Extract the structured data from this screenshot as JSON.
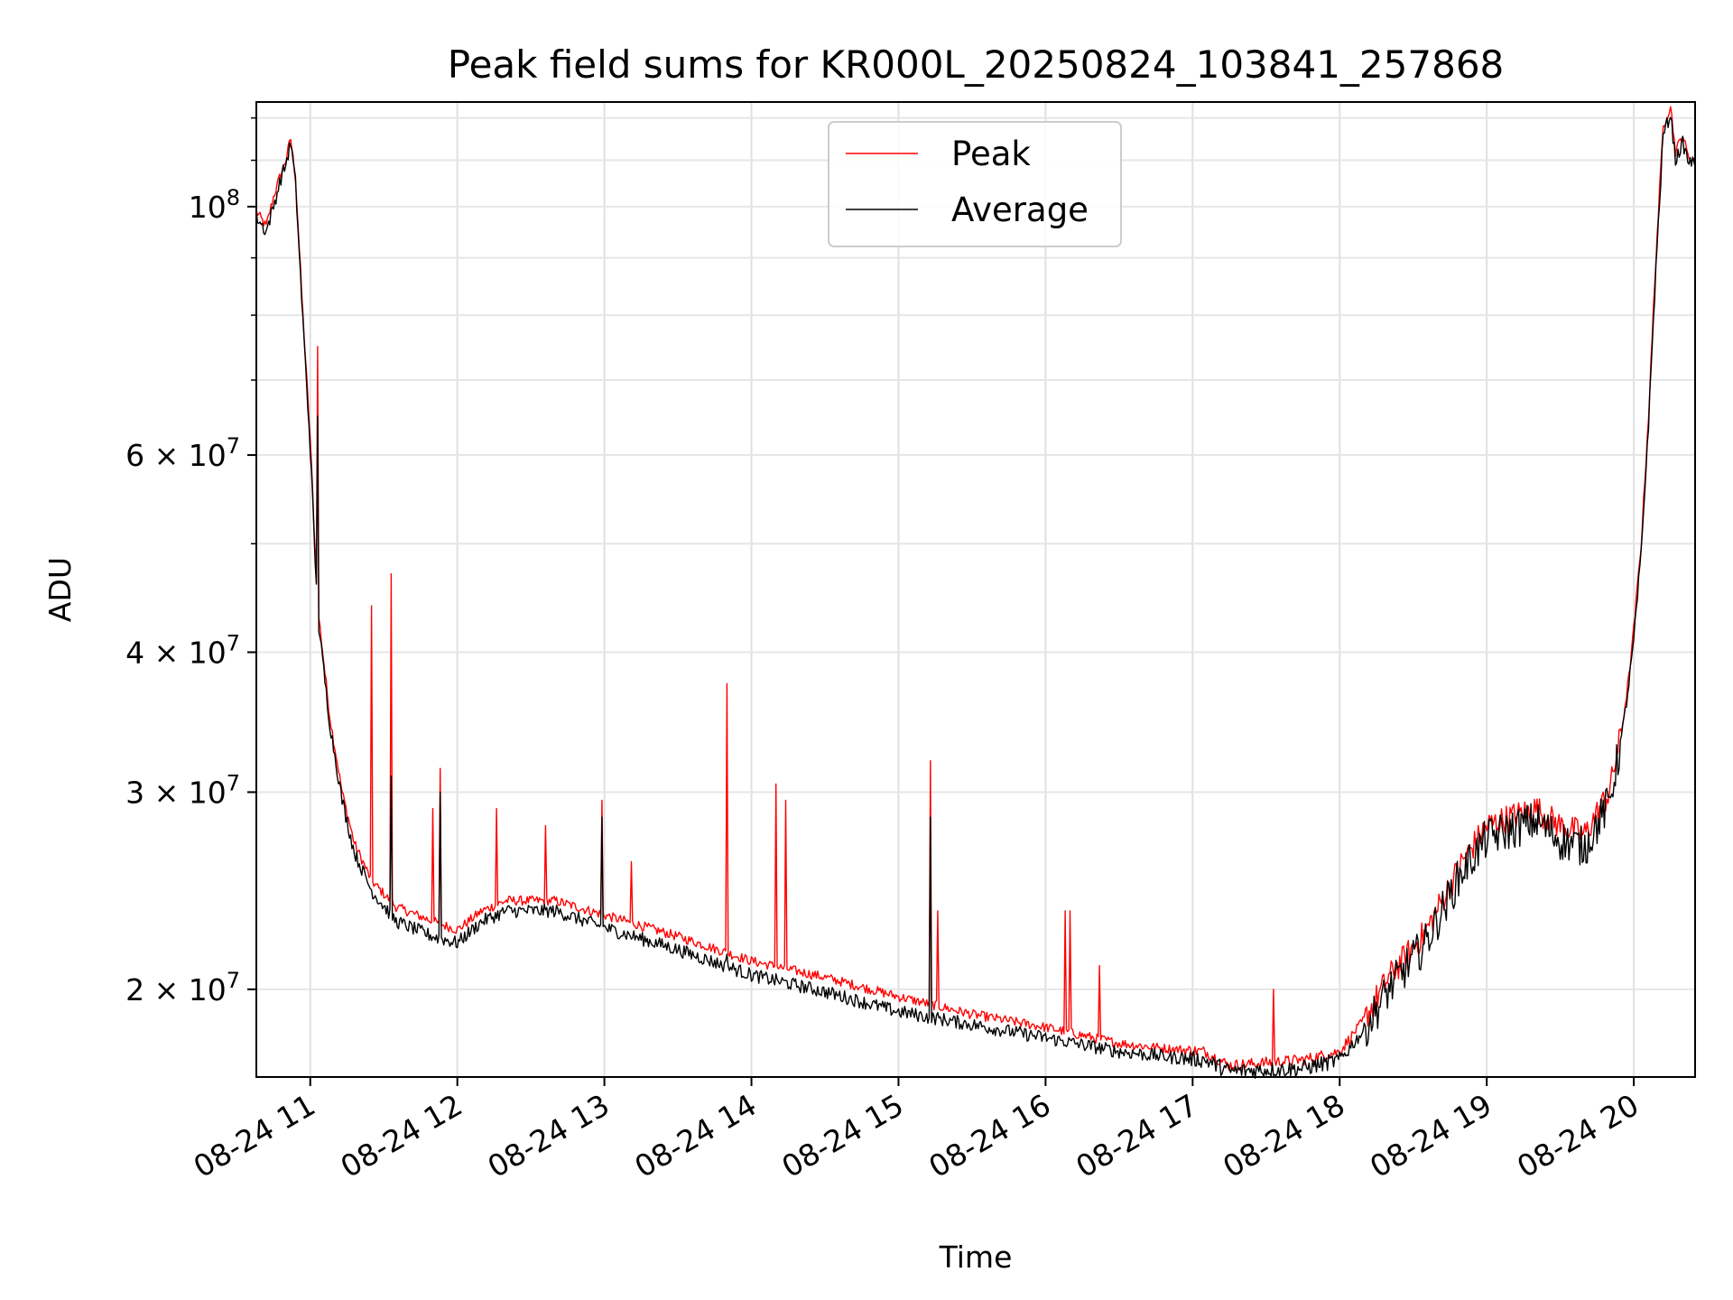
{
  "chart_data": {
    "type": "line",
    "title": "Peak field sums for KR000L_20250824_103841_257868",
    "xlabel": "Time",
    "ylabel": "ADU",
    "x_ticks": [
      "08-24 11",
      "08-24 12",
      "08-24 13",
      "08-24 14",
      "08-24 15",
      "08-24 16",
      "08-24 17",
      "08-24 18",
      "08-24 19",
      "08-24 20"
    ],
    "y_ticks": [
      {
        "value": 20000000,
        "mant": "2",
        "exp": "7"
      },
      {
        "value": 30000000,
        "mant": "3",
        "exp": "7"
      },
      {
        "value": 40000000,
        "mant": "4",
        "exp": "7"
      },
      {
        "value": 60000000,
        "mant": "6",
        "exp": "7"
      },
      {
        "value": 100000000,
        "mant": "10",
        "exp": "8"
      }
    ],
    "xlim": [
      "2025-08-24 10:38",
      "2025-08-24 20:25"
    ],
    "ylim": [
      16700000,
      124000000
    ],
    "yscale": "log",
    "grid": true,
    "legend_position": "upper center",
    "series": [
      {
        "name": "Peak",
        "color": "#ff0000",
        "points": [
          [
            "2025-08-24 10:38",
            99000000
          ],
          [
            "2025-08-24 10:42",
            96000000
          ],
          [
            "2025-08-24 10:45",
            102000000
          ],
          [
            "2025-08-24 10:48",
            107000000
          ],
          [
            "2025-08-24 10:50",
            110000000
          ],
          [
            "2025-08-24 10:52",
            115000000
          ],
          [
            "2025-08-24 10:54",
            106000000
          ],
          [
            "2025-08-24 10:57",
            80000000
          ],
          [
            "2025-08-24 11:00",
            62000000
          ],
          [
            "2025-08-24 11:03",
            44000000
          ],
          [
            "2025-08-24 11:08",
            35000000
          ],
          [
            "2025-08-24 11:13",
            30000000
          ],
          [
            "2025-08-24 11:18",
            27000000
          ],
          [
            "2025-08-24 11:25",
            25000000
          ],
          [
            "2025-08-24 11:35",
            23700000
          ],
          [
            "2025-08-24 11:50",
            23000000
          ],
          [
            "2025-08-24 12:00",
            22600000
          ],
          [
            "2025-08-24 12:10",
            23500000
          ],
          [
            "2025-08-24 12:20",
            24000000
          ],
          [
            "2025-08-24 12:40",
            24000000
          ],
          [
            "2025-08-24 13:00",
            23300000
          ],
          [
            "2025-08-24 13:30",
            22300000
          ],
          [
            "2025-08-24 14:00",
            21200000
          ],
          [
            "2025-08-24 14:30",
            20500000
          ],
          [
            "2025-08-24 15:00",
            19700000
          ],
          [
            "2025-08-24 15:30",
            19000000
          ],
          [
            "2025-08-24 16:00",
            18500000
          ],
          [
            "2025-08-24 16:30",
            17900000
          ],
          [
            "2025-08-24 16:50",
            17700000
          ],
          [
            "2025-08-24 17:05",
            17600000
          ],
          [
            "2025-08-24 17:15",
            17100000
          ],
          [
            "2025-08-24 17:30",
            17200000
          ],
          [
            "2025-08-24 17:45",
            17300000
          ],
          [
            "2025-08-24 18:00",
            17600000
          ],
          [
            "2025-08-24 18:10",
            18800000
          ],
          [
            "2025-08-24 18:20",
            20500000
          ],
          [
            "2025-08-24 18:35",
            22500000
          ],
          [
            "2025-08-24 18:50",
            26000000
          ],
          [
            "2025-08-24 19:00",
            28000000
          ],
          [
            "2025-08-24 19:10",
            28500000
          ],
          [
            "2025-08-24 19:20",
            29000000
          ],
          [
            "2025-08-24 19:30",
            28000000
          ],
          [
            "2025-08-24 19:40",
            27500000
          ],
          [
            "2025-08-24 19:50",
            30000000
          ],
          [
            "2025-08-24 19:55",
            34000000
          ],
          [
            "2025-08-24 19:58",
            38000000
          ],
          [
            "2025-08-24 20:00",
            42000000
          ],
          [
            "2025-08-24 20:03",
            50000000
          ],
          [
            "2025-08-24 20:06",
            65000000
          ],
          [
            "2025-08-24 20:09",
            90000000
          ],
          [
            "2025-08-24 20:12",
            118000000
          ],
          [
            "2025-08-24 20:15",
            123000000
          ],
          [
            "2025-08-24 20:17",
            112000000
          ],
          [
            "2025-08-24 20:20",
            116000000
          ],
          [
            "2025-08-24 20:22",
            111000000
          ],
          [
            "2025-08-24 20:25",
            110000000
          ]
        ],
        "spikes": [
          [
            "2025-08-24 11:03",
            75000000
          ],
          [
            "2025-08-24 11:25",
            44000000
          ],
          [
            "2025-08-24 11:33",
            47000000
          ],
          [
            "2025-08-24 11:50",
            29000000
          ],
          [
            "2025-08-24 11:53",
            31500000
          ],
          [
            "2025-08-24 12:16",
            29000000
          ],
          [
            "2025-08-24 12:36",
            28000000
          ],
          [
            "2025-08-24 12:59",
            29500000
          ],
          [
            "2025-08-24 13:11",
            26000000
          ],
          [
            "2025-08-24 13:50",
            37500000
          ],
          [
            "2025-08-24 14:10",
            30500000
          ],
          [
            "2025-08-24 14:14",
            29500000
          ],
          [
            "2025-08-24 15:13",
            32000000
          ],
          [
            "2025-08-24 15:16",
            23500000
          ],
          [
            "2025-08-24 16:08",
            23500000
          ],
          [
            "2025-08-24 16:10",
            23500000
          ],
          [
            "2025-08-24 16:22",
            21000000
          ],
          [
            "2025-08-24 17:33",
            20000000
          ]
        ]
      },
      {
        "name": "Average",
        "color": "#000000",
        "points": [
          [
            "2025-08-24 10:38",
            98000000
          ],
          [
            "2025-08-24 10:42",
            95000000
          ],
          [
            "2025-08-24 10:45",
            100000000
          ],
          [
            "2025-08-24 10:48",
            106000000
          ],
          [
            "2025-08-24 10:50",
            109000000
          ],
          [
            "2025-08-24 10:52",
            114000000
          ],
          [
            "2025-08-24 10:54",
            105000000
          ],
          [
            "2025-08-24 10:57",
            79000000
          ],
          [
            "2025-08-24 11:00",
            61000000
          ],
          [
            "2025-08-24 11:03",
            43000000
          ],
          [
            "2025-08-24 11:08",
            34500000
          ],
          [
            "2025-08-24 11:13",
            29500000
          ],
          [
            "2025-08-24 11:18",
            26500000
          ],
          [
            "2025-08-24 11:25",
            24500000
          ],
          [
            "2025-08-24 11:35",
            23000000
          ],
          [
            "2025-08-24 11:50",
            22300000
          ],
          [
            "2025-08-24 12:00",
            22000000
          ],
          [
            "2025-08-24 12:10",
            23000000
          ],
          [
            "2025-08-24 12:20",
            23500000
          ],
          [
            "2025-08-24 12:40",
            23500000
          ],
          [
            "2025-08-24 13:00",
            22700000
          ],
          [
            "2025-08-24 13:30",
            21700000
          ],
          [
            "2025-08-24 14:00",
            20600000
          ],
          [
            "2025-08-24 14:30",
            19900000
          ],
          [
            "2025-08-24 15:00",
            19100000
          ],
          [
            "2025-08-24 15:30",
            18600000
          ],
          [
            "2025-08-24 16:00",
            18100000
          ],
          [
            "2025-08-24 16:30",
            17600000
          ],
          [
            "2025-08-24 16:50",
            17400000
          ],
          [
            "2025-08-24 17:05",
            17300000
          ],
          [
            "2025-08-24 17:15",
            16900000
          ],
          [
            "2025-08-24 17:30",
            16950000
          ],
          [
            "2025-08-24 17:45",
            17000000
          ],
          [
            "2025-08-24 18:00",
            17300000
          ],
          [
            "2025-08-24 18:10",
            18400000
          ],
          [
            "2025-08-24 18:20",
            20000000
          ],
          [
            "2025-08-24 18:35",
            22000000
          ],
          [
            "2025-08-24 18:50",
            25500000
          ],
          [
            "2025-08-24 19:00",
            27300000
          ],
          [
            "2025-08-24 19:10",
            27800000
          ],
          [
            "2025-08-24 19:20",
            28300000
          ],
          [
            "2025-08-24 19:30",
            27200000
          ],
          [
            "2025-08-24 19:40",
            26800000
          ],
          [
            "2025-08-24 19:50",
            29400000
          ],
          [
            "2025-08-24 19:55",
            33500000
          ],
          [
            "2025-08-24 19:58",
            37500000
          ],
          [
            "2025-08-24 20:00",
            41000000
          ],
          [
            "2025-08-24 20:03",
            49000000
          ],
          [
            "2025-08-24 20:06",
            64000000
          ],
          [
            "2025-08-24 20:09",
            88000000
          ],
          [
            "2025-08-24 20:12",
            116000000
          ],
          [
            "2025-08-24 20:15",
            121000000
          ],
          [
            "2025-08-24 20:17",
            110000000
          ],
          [
            "2025-08-24 20:20",
            114000000
          ],
          [
            "2025-08-24 20:22",
            110000000
          ],
          [
            "2025-08-24 20:25",
            109000000
          ]
        ],
        "spikes": [
          [
            "2025-08-24 11:03",
            65000000
          ],
          [
            "2025-08-24 11:33",
            31000000
          ],
          [
            "2025-08-24 11:53",
            30000000
          ],
          [
            "2025-08-24 12:59",
            28500000
          ],
          [
            "2025-08-24 13:50",
            21500000
          ],
          [
            "2025-08-24 15:13",
            28500000
          ]
        ]
      }
    ]
  }
}
